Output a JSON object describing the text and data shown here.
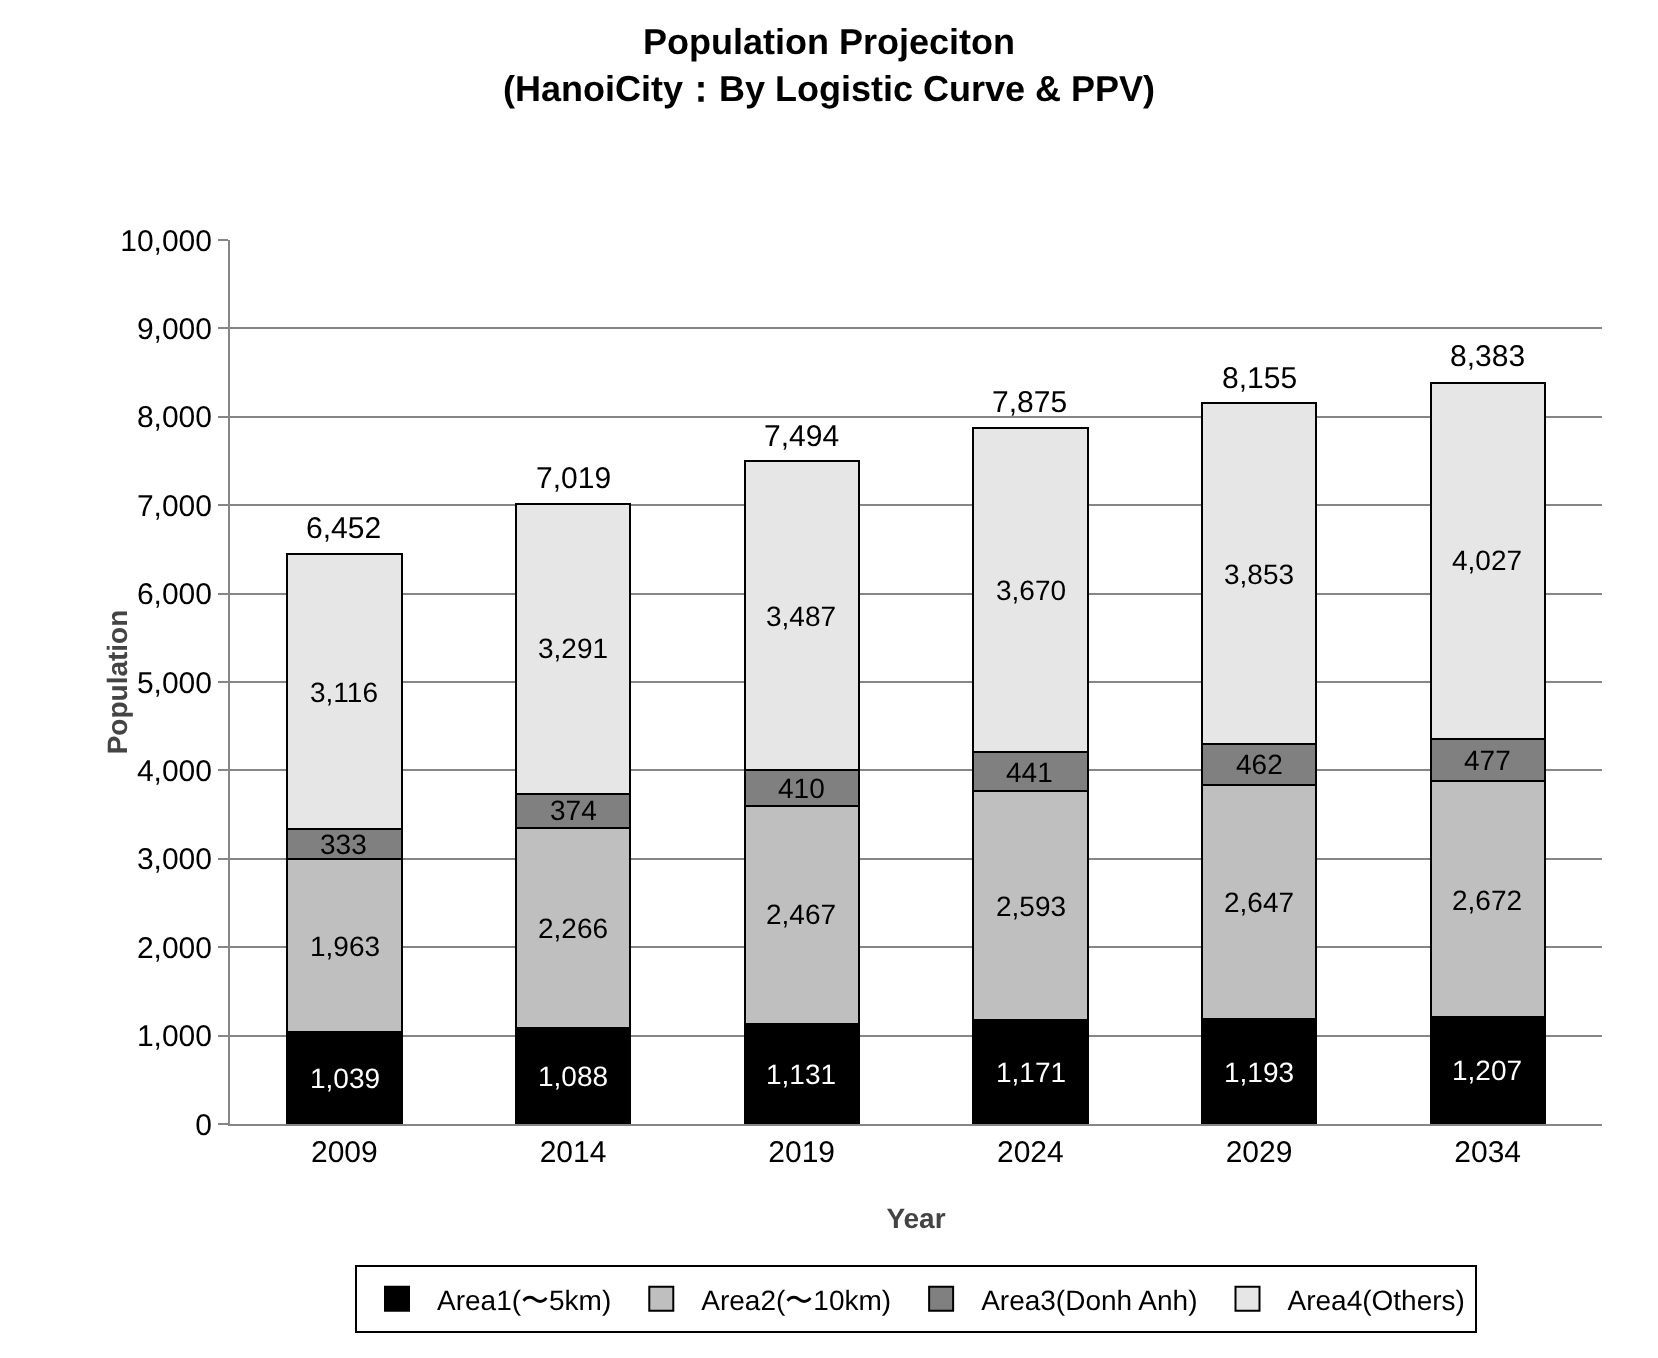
{
  "chart_data": {
    "type": "bar",
    "title": "Population Projeciton\n(HanoiCity：By Logistic Curve & PPV)",
    "xlabel": "Year",
    "ylabel": "Population",
    "categories": [
      "2009",
      "2014",
      "2019",
      "2024",
      "2029",
      "2034"
    ],
    "stacked": true,
    "series": [
      {
        "name": "Area1(〜5km)",
        "color": "#000000",
        "values": [
          1039,
          1088,
          1131,
          1171,
          1193,
          1207
        ],
        "value_labels": [
          "1,039",
          "1,088",
          "1,131",
          "1,171",
          "1,193",
          "1,207"
        ]
      },
      {
        "name": "Area2(〜10km)",
        "color": "#bfbfbf",
        "values": [
          1963,
          2266,
          2467,
          2593,
          2647,
          2672
        ],
        "value_labels": [
          "1,963",
          "2,266",
          "2,467",
          "2,593",
          "2,647",
          "2,672"
        ]
      },
      {
        "name": "Area3(Donh Anh)",
        "color": "#808080",
        "values": [
          333,
          374,
          410,
          441,
          462,
          477
        ],
        "value_labels": [
          "333",
          "374",
          "410",
          "441",
          "462",
          "477"
        ]
      },
      {
        "name": "Area4(Others)",
        "color": "#e6e6e6",
        "values": [
          3116,
          3291,
          3487,
          3670,
          3853,
          4027
        ],
        "value_labels": [
          "3,116",
          "3,291",
          "3,487",
          "3,670",
          "3,853",
          "4,027"
        ]
      }
    ],
    "totals": [
      "6,452",
      "7,019",
      "7,494",
      "7,875",
      "8,155",
      "8,383"
    ],
    "ylim": [
      0,
      10000
    ],
    "yticks": [
      {
        "value": 0,
        "label": "0"
      },
      {
        "value": 1000,
        "label": "1,000"
      },
      {
        "value": 2000,
        "label": "2,000"
      },
      {
        "value": 3000,
        "label": "3,000"
      },
      {
        "value": 4000,
        "label": "4,000"
      },
      {
        "value": 5000,
        "label": "5,000"
      },
      {
        "value": 6000,
        "label": "6,000"
      },
      {
        "value": 7000,
        "label": "7,000"
      },
      {
        "value": 8000,
        "label": "8,000"
      },
      {
        "value": 9000,
        "label": "9,000"
      },
      {
        "value": 10000,
        "label": "10,000"
      }
    ],
    "grid": "y",
    "legend": "bottom"
  }
}
